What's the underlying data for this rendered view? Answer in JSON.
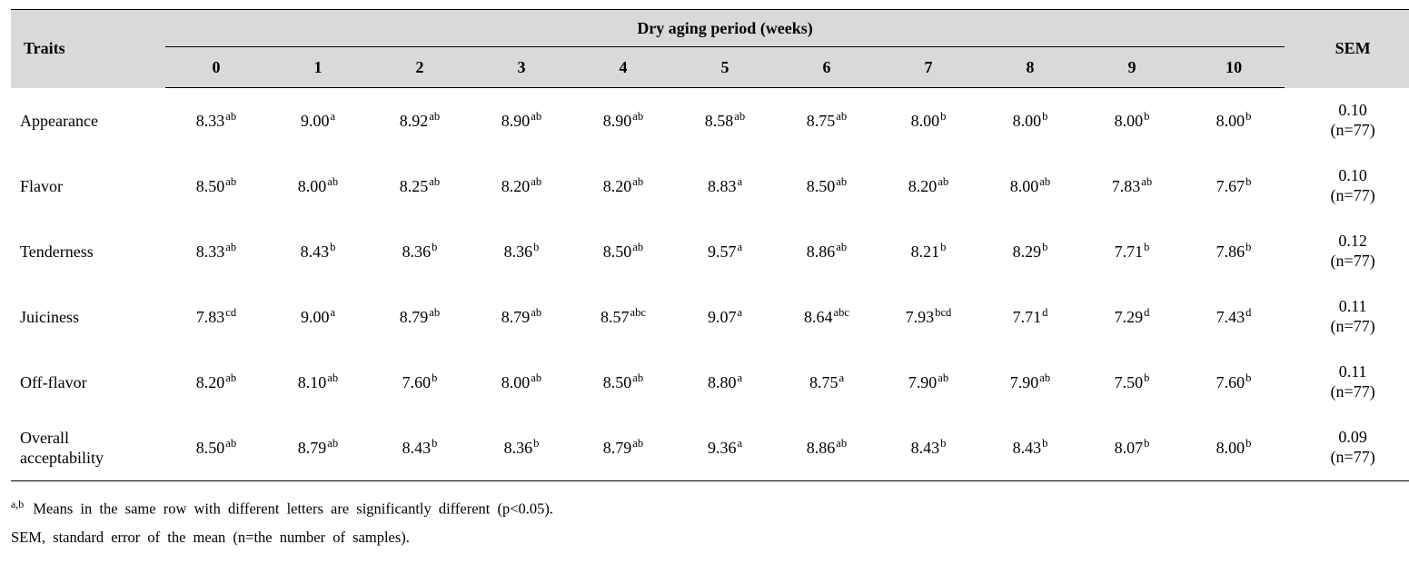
{
  "colors": {
    "header_bg": "#d9d9d9",
    "border": "#000000",
    "text": "#000000",
    "page_bg": "#ffffff"
  },
  "table": {
    "header": {
      "traits_label": "Traits",
      "group_label": "Dry aging period (weeks)",
      "sem_label": "SEM",
      "week_labels": [
        "0",
        "1",
        "2",
        "3",
        "4",
        "5",
        "6",
        "7",
        "8",
        "9",
        "10"
      ]
    },
    "rows": [
      {
        "trait": "Appearance",
        "cells": [
          {
            "v": "8.33",
            "s": "ab"
          },
          {
            "v": "9.00",
            "s": "a"
          },
          {
            "v": "8.92",
            "s": "ab"
          },
          {
            "v": "8.90",
            "s": "ab"
          },
          {
            "v": "8.90",
            "s": "ab"
          },
          {
            "v": "8.58",
            "s": "ab"
          },
          {
            "v": "8.75",
            "s": "ab"
          },
          {
            "v": "8.00",
            "s": "b"
          },
          {
            "v": "8.00",
            "s": "b"
          },
          {
            "v": "8.00",
            "s": "b"
          },
          {
            "v": "8.00",
            "s": "b"
          }
        ],
        "sem": {
          "value": "0.10",
          "n": "(n=77)"
        }
      },
      {
        "trait": "Flavor",
        "cells": [
          {
            "v": "8.50",
            "s": "ab"
          },
          {
            "v": "8.00",
            "s": "ab"
          },
          {
            "v": "8.25",
            "s": "ab"
          },
          {
            "v": "8.20",
            "s": "ab"
          },
          {
            "v": "8.20",
            "s": "ab"
          },
          {
            "v": "8.83",
            "s": "a"
          },
          {
            "v": "8.50",
            "s": "ab"
          },
          {
            "v": "8.20",
            "s": "ab"
          },
          {
            "v": "8.00",
            "s": "ab"
          },
          {
            "v": "7.83",
            "s": "ab"
          },
          {
            "v": "7.67",
            "s": "b"
          }
        ],
        "sem": {
          "value": "0.10",
          "n": "(n=77)"
        }
      },
      {
        "trait": "Tenderness",
        "cells": [
          {
            "v": "8.33",
            "s": "ab"
          },
          {
            "v": "8.43",
            "s": "b"
          },
          {
            "v": "8.36",
            "s": "b"
          },
          {
            "v": "8.36",
            "s": "b"
          },
          {
            "v": "8.50",
            "s": "ab"
          },
          {
            "v": "9.57",
            "s": "a"
          },
          {
            "v": "8.86",
            "s": "ab"
          },
          {
            "v": "8.21",
            "s": "b"
          },
          {
            "v": "8.29",
            "s": "b"
          },
          {
            "v": "7.71",
            "s": "b"
          },
          {
            "v": "7.86",
            "s": "b"
          }
        ],
        "sem": {
          "value": "0.12",
          "n": "(n=77)"
        }
      },
      {
        "trait": "Juiciness",
        "cells": [
          {
            "v": "7.83",
            "s": "cd"
          },
          {
            "v": "9.00",
            "s": "a"
          },
          {
            "v": "8.79",
            "s": "ab"
          },
          {
            "v": "8.79",
            "s": "ab"
          },
          {
            "v": "8.57",
            "s": "abc"
          },
          {
            "v": "9.07",
            "s": "a"
          },
          {
            "v": "8.64",
            "s": "abc"
          },
          {
            "v": "7.93",
            "s": "bcd"
          },
          {
            "v": "7.71",
            "s": "d"
          },
          {
            "v": "7.29",
            "s": "d"
          },
          {
            "v": "7.43",
            "s": "d"
          }
        ],
        "sem": {
          "value": "0.11",
          "n": "(n=77)"
        }
      },
      {
        "trait": "Off-flavor",
        "cells": [
          {
            "v": "8.20",
            "s": "ab"
          },
          {
            "v": "8.10",
            "s": "ab"
          },
          {
            "v": "7.60",
            "s": "b"
          },
          {
            "v": "8.00",
            "s": "ab"
          },
          {
            "v": "8.50",
            "s": "ab"
          },
          {
            "v": "8.80",
            "s": "a"
          },
          {
            "v": "8.75",
            "s": "a"
          },
          {
            "v": "7.90",
            "s": "ab"
          },
          {
            "v": "7.90",
            "s": "ab"
          },
          {
            "v": "7.50",
            "s": "b"
          },
          {
            "v": "7.60",
            "s": "b"
          }
        ],
        "sem": {
          "value": "0.11",
          "n": "(n=77)"
        }
      },
      {
        "trait": "Overall acceptability",
        "cells": [
          {
            "v": "8.50",
            "s": "ab"
          },
          {
            "v": "8.79",
            "s": "ab"
          },
          {
            "v": "8.43",
            "s": "b"
          },
          {
            "v": "8.36",
            "s": "b"
          },
          {
            "v": "8.79",
            "s": "ab"
          },
          {
            "v": "9.36",
            "s": "a"
          },
          {
            "v": "8.86",
            "s": "ab"
          },
          {
            "v": "8.43",
            "s": "b"
          },
          {
            "v": "8.43",
            "s": "b"
          },
          {
            "v": "8.07",
            "s": "b"
          },
          {
            "v": "8.00",
            "s": "b"
          }
        ],
        "sem": {
          "value": "0.09",
          "n": "(n=77)"
        }
      }
    ]
  },
  "footnotes": {
    "note1_sup": "a,b",
    "note1_text": " Means in the same row with different letters are significantly different (p<0.05).",
    "note2_text": "SEM, standard error of the mean (n=the number of samples)."
  }
}
